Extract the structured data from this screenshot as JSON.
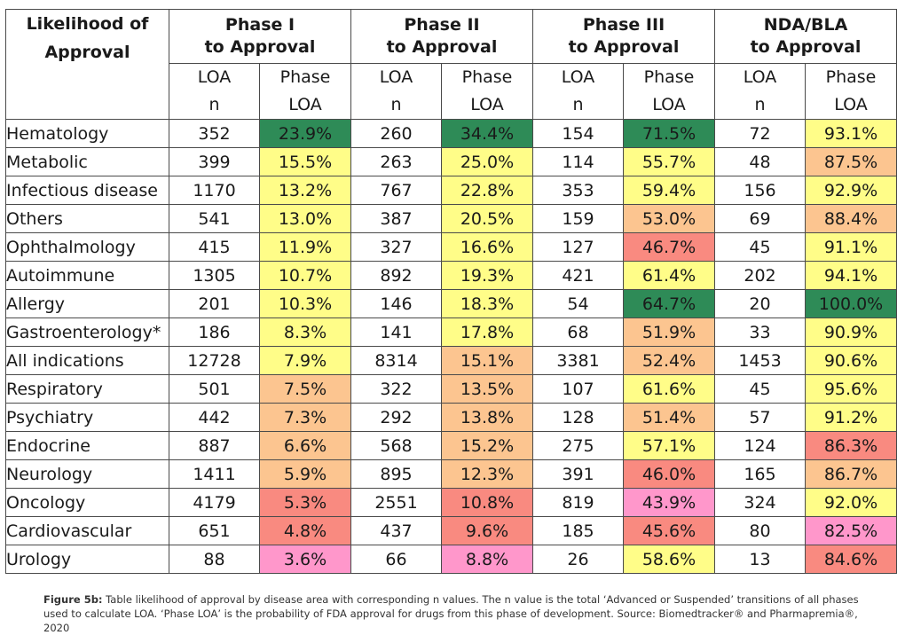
{
  "header": {
    "corner_line1": "Likelihood of",
    "corner_line2": "Approval",
    "phases": [
      {
        "line1": "Phase I",
        "line2": "to Approval"
      },
      {
        "line1": "Phase II",
        "line2": "to Approval"
      },
      {
        "line1": "Phase III",
        "line2": "to Approval"
      },
      {
        "line1": "NDA/BLA",
        "line2": "to Approval"
      }
    ],
    "sub_n_line1": "LOA",
    "sub_n_line2": "n",
    "sub_p_line1": "Phase",
    "sub_p_line2": "LOA"
  },
  "colors": {
    "green": "#2e8b57",
    "yellow": "#fffd88",
    "orange": "#fcc590",
    "red": "#f98a80",
    "pink": "#ff97cb"
  },
  "rows": [
    {
      "name": "Hematology",
      "cells": [
        [
          "352",
          "23.9%",
          "green"
        ],
        [
          "260",
          "34.4%",
          "green"
        ],
        [
          "154",
          "71.5%",
          "green"
        ],
        [
          "72",
          "93.1%",
          "yellow"
        ]
      ]
    },
    {
      "name": "Metabolic",
      "cells": [
        [
          "399",
          "15.5%",
          "yellow"
        ],
        [
          "263",
          "25.0%",
          "yellow"
        ],
        [
          "114",
          "55.7%",
          "yellow"
        ],
        [
          "48",
          "87.5%",
          "orange"
        ]
      ]
    },
    {
      "name": "Infectious disease",
      "cells": [
        [
          "1170",
          "13.2%",
          "yellow"
        ],
        [
          "767",
          "22.8%",
          "yellow"
        ],
        [
          "353",
          "59.4%",
          "yellow"
        ],
        [
          "156",
          "92.9%",
          "yellow"
        ]
      ]
    },
    {
      "name": "Others",
      "cells": [
        [
          "541",
          "13.0%",
          "yellow"
        ],
        [
          "387",
          "20.5%",
          "yellow"
        ],
        [
          "159",
          "53.0%",
          "orange"
        ],
        [
          "69",
          "88.4%",
          "orange"
        ]
      ]
    },
    {
      "name": "Ophthalmology",
      "cells": [
        [
          "415",
          "11.9%",
          "yellow"
        ],
        [
          "327",
          "16.6%",
          "yellow"
        ],
        [
          "127",
          "46.7%",
          "red"
        ],
        [
          "45",
          "91.1%",
          "yellow"
        ]
      ]
    },
    {
      "name": "Autoimmune",
      "cells": [
        [
          "1305",
          "10.7%",
          "yellow"
        ],
        [
          "892",
          "19.3%",
          "yellow"
        ],
        [
          "421",
          "61.4%",
          "yellow"
        ],
        [
          "202",
          "94.1%",
          "yellow"
        ]
      ]
    },
    {
      "name": "Allergy",
      "cells": [
        [
          "201",
          "10.3%",
          "yellow"
        ],
        [
          "146",
          "18.3%",
          "yellow"
        ],
        [
          "54",
          "64.7%",
          "green"
        ],
        [
          "20",
          "100.0%",
          "green"
        ]
      ]
    },
    {
      "name": "Gastroenterology*",
      "cells": [
        [
          "186",
          "8.3%",
          "yellow"
        ],
        [
          "141",
          "17.8%",
          "yellow"
        ],
        [
          "68",
          "51.9%",
          "orange"
        ],
        [
          "33",
          "90.9%",
          "yellow"
        ]
      ]
    },
    {
      "name": "All indications",
      "cells": [
        [
          "12728",
          "7.9%",
          "yellow"
        ],
        [
          "8314",
          "15.1%",
          "orange"
        ],
        [
          "3381",
          "52.4%",
          "orange"
        ],
        [
          "1453",
          "90.6%",
          "yellow"
        ]
      ]
    },
    {
      "name": "Respiratory",
      "cells": [
        [
          "501",
          "7.5%",
          "orange"
        ],
        [
          "322",
          "13.5%",
          "orange"
        ],
        [
          "107",
          "61.6%",
          "yellow"
        ],
        [
          "45",
          "95.6%",
          "yellow"
        ]
      ]
    },
    {
      "name": "Psychiatry",
      "cells": [
        [
          "442",
          "7.3%",
          "orange"
        ],
        [
          "292",
          "13.8%",
          "orange"
        ],
        [
          "128",
          "51.4%",
          "orange"
        ],
        [
          "57",
          "91.2%",
          "yellow"
        ]
      ]
    },
    {
      "name": "Endocrine",
      "cells": [
        [
          "887",
          "6.6%",
          "orange"
        ],
        [
          "568",
          "15.2%",
          "orange"
        ],
        [
          "275",
          "57.1%",
          "yellow"
        ],
        [
          "124",
          "86.3%",
          "red"
        ]
      ]
    },
    {
      "name": "Neurology",
      "cells": [
        [
          "1411",
          "5.9%",
          "orange"
        ],
        [
          "895",
          "12.3%",
          "orange"
        ],
        [
          "391",
          "46.0%",
          "red"
        ],
        [
          "165",
          "86.7%",
          "orange"
        ]
      ]
    },
    {
      "name": "Oncology",
      "cells": [
        [
          "4179",
          "5.3%",
          "red"
        ],
        [
          "2551",
          "10.8%",
          "red"
        ],
        [
          "819",
          "43.9%",
          "pink"
        ],
        [
          "324",
          "92.0%",
          "yellow"
        ]
      ]
    },
    {
      "name": "Cardiovascular",
      "cells": [
        [
          "651",
          "4.8%",
          "red"
        ],
        [
          "437",
          "9.6%",
          "red"
        ],
        [
          "185",
          "45.6%",
          "red"
        ],
        [
          "80",
          "82.5%",
          "pink"
        ]
      ]
    },
    {
      "name": "Urology",
      "cells": [
        [
          "88",
          "3.6%",
          "pink"
        ],
        [
          "66",
          "8.8%",
          "pink"
        ],
        [
          "26",
          "58.6%",
          "yellow"
        ],
        [
          "13",
          "84.6%",
          "red"
        ]
      ]
    }
  ],
  "caption": {
    "label": "Figure 5b:",
    "text": " Table likelihood of approval by disease area with corresponding n values. The n value is the total ‘Advanced or Suspended’ transitions of all phases used to calculate LOA. ‘Phase LOA’ is the probability of FDA approval for drugs from this phase of development. Source: Biomedtracker® and Pharmapremia®, 2020"
  }
}
